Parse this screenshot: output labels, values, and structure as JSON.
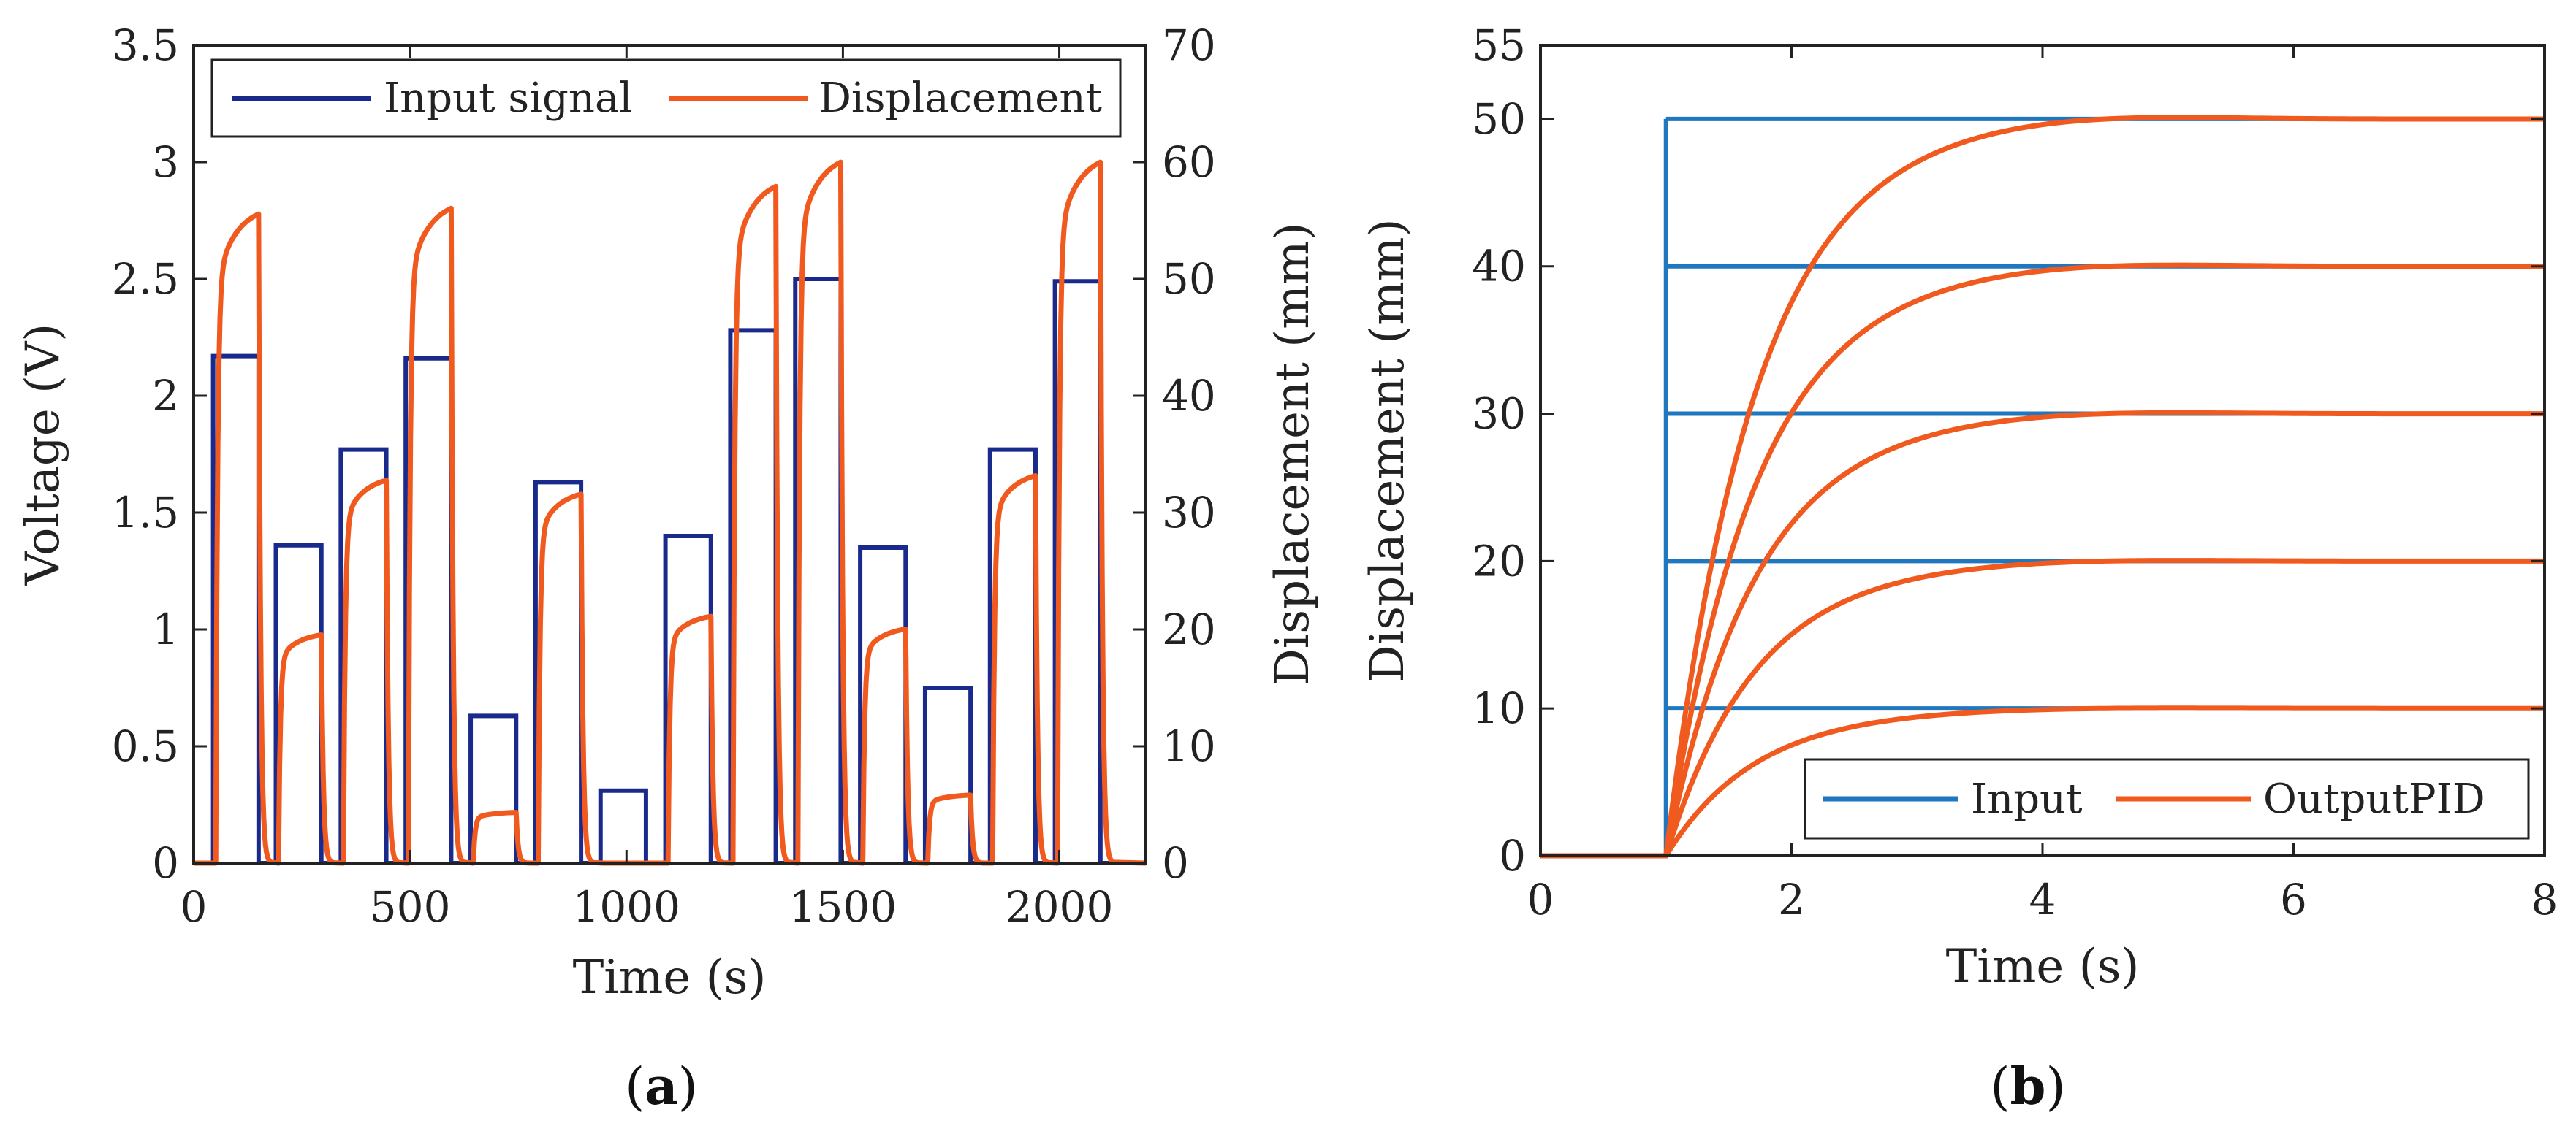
{
  "colors": {
    "input_a": "#1a2a8c",
    "displacement": "#f05a1e",
    "input_b": "#1f77c0",
    "axis": "#222222"
  },
  "chart_data": [
    {
      "id": "a",
      "type": "line",
      "caption_letter": "a",
      "xlabel": "Time (s)",
      "ylabel_left": "Voltage (V)",
      "ylabel_right": "Displacement (mm)",
      "xlim": [
        0,
        2200
      ],
      "ylim_left": [
        0,
        3.5
      ],
      "ylim_right": [
        0,
        70
      ],
      "xticks": [
        "0",
        "500",
        "1000",
        "1500",
        "2000"
      ],
      "yticks_left": [
        "0",
        "0.5",
        "1",
        "1.5",
        "2",
        "2.5",
        "3",
        "3.5"
      ],
      "yticks_right": [
        "0",
        "10",
        "20",
        "30",
        "40",
        "50",
        "60",
        "70"
      ],
      "legend_position": "top",
      "series": [
        {
          "name": "Input signal",
          "axis": "left",
          "pulses": [
            {
              "start": 45,
              "end": 150,
              "value": 2.17
            },
            {
              "start": 190,
              "end": 295,
              "value": 1.36
            },
            {
              "start": 340,
              "end": 445,
              "value": 1.77
            },
            {
              "start": 490,
              "end": 595,
              "value": 2.16
            },
            {
              "start": 640,
              "end": 745,
              "value": 0.63
            },
            {
              "start": 790,
              "end": 895,
              "value": 1.63
            },
            {
              "start": 940,
              "end": 1045,
              "value": 0.31
            },
            {
              "start": 1090,
              "end": 1195,
              "value": 1.4
            },
            {
              "start": 1240,
              "end": 1345,
              "value": 2.28
            },
            {
              "start": 1390,
              "end": 1495,
              "value": 2.5
            },
            {
              "start": 1540,
              "end": 1645,
              "value": 1.35
            },
            {
              "start": 1690,
              "end": 1795,
              "value": 0.75
            },
            {
              "start": 1840,
              "end": 1945,
              "value": 1.77
            },
            {
              "start": 1990,
              "end": 2095,
              "value": 2.49
            }
          ]
        },
        {
          "name": "Displacement",
          "axis": "right",
          "pulses": [
            {
              "start": 45,
              "end": 150,
              "value": 56.3
            },
            {
              "start": 190,
              "end": 295,
              "value": 19.8
            },
            {
              "start": 340,
              "end": 445,
              "value": 33.2
            },
            {
              "start": 490,
              "end": 595,
              "value": 56.8
            },
            {
              "start": 640,
              "end": 745,
              "value": 4.4
            },
            {
              "start": 790,
              "end": 895,
              "value": 32.0
            },
            {
              "start": 940,
              "end": 1045,
              "value": 0.0
            },
            {
              "start": 1090,
              "end": 1195,
              "value": 21.4
            },
            {
              "start": 1240,
              "end": 1345,
              "value": 58.7
            },
            {
              "start": 1390,
              "end": 1495,
              "value": 60.8
            },
            {
              "start": 1540,
              "end": 1645,
              "value": 20.3
            },
            {
              "start": 1690,
              "end": 1795,
              "value": 5.9
            },
            {
              "start": 1840,
              "end": 1945,
              "value": 33.6
            },
            {
              "start": 1990,
              "end": 2095,
              "value": 60.8
            }
          ]
        }
      ]
    },
    {
      "id": "b",
      "type": "line",
      "caption_letter": "b",
      "xlabel": "Time (s)",
      "ylabel": "Displacement (mm)",
      "xlim": [
        0,
        8
      ],
      "ylim": [
        0,
        55
      ],
      "xticks": [
        "0",
        "2",
        "4",
        "6",
        "8"
      ],
      "yticks": [
        "0",
        "10",
        "20",
        "30",
        "40",
        "50",
        "55"
      ],
      "step_time": 1,
      "setpoints": [
        10,
        20,
        30,
        40,
        50
      ],
      "legend_position": "bottom-right",
      "series": [
        {
          "name": "Input",
          "type": "step"
        },
        {
          "name": "OutputPID",
          "type": "pid_response",
          "overshoot_pct": 0.8,
          "settle_time": 3.5
        }
      ]
    }
  ]
}
